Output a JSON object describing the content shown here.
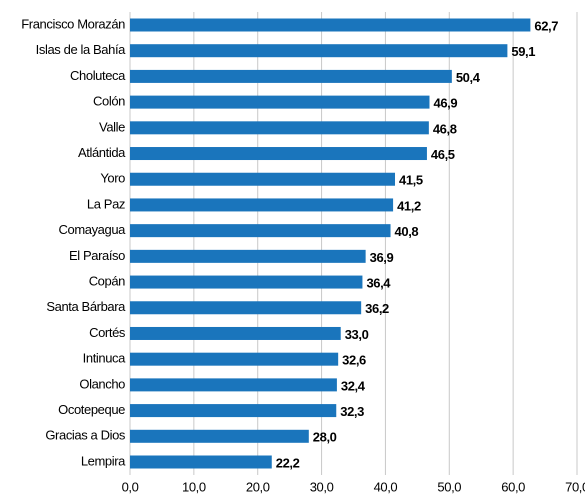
{
  "chart_data": {
    "type": "bar",
    "orientation": "horizontal",
    "color": "#1a75bc",
    "grid": true,
    "categories": [
      "Francisco Morazán",
      "Islas de la Bahía",
      "Choluteca",
      "Colón",
      "Valle",
      "Atlántida",
      "Yoro",
      "La Paz",
      "Comayagua",
      "El Paraíso",
      "Copán",
      "Santa Bárbara",
      "Cortés",
      "Intinuca",
      "Olancho",
      "Ocotepeque",
      "Gracias a Dios",
      "Lempira"
    ],
    "values": [
      62.7,
      59.1,
      50.4,
      46.9,
      46.8,
      46.5,
      41.5,
      41.2,
      40.8,
      36.9,
      36.4,
      36.2,
      33.0,
      32.6,
      32.4,
      32.3,
      28.0,
      22.2
    ],
    "value_labels": [
      "62,7",
      "59,1",
      "50,4",
      "46,9",
      "46,8",
      "46,5",
      "41,5",
      "41,2",
      "40,8",
      "36,9",
      "36,4",
      "36,2",
      "33,0",
      "32,6",
      "32,4",
      "32,3",
      "28,0",
      "22,2"
    ],
    "xlim": [
      0,
      70
    ],
    "xticks": [
      {
        "value": 0,
        "label": "0,0"
      },
      {
        "value": 10,
        "label": "10,0"
      },
      {
        "value": 20,
        "label": "20,0"
      },
      {
        "value": 30,
        "label": "30,0"
      },
      {
        "value": 40,
        "label": "40,0"
      },
      {
        "value": 50,
        "label": "50,0"
      },
      {
        "value": 60,
        "label": "60,0"
      },
      {
        "value": 70,
        "label": "70,0"
      }
    ]
  }
}
